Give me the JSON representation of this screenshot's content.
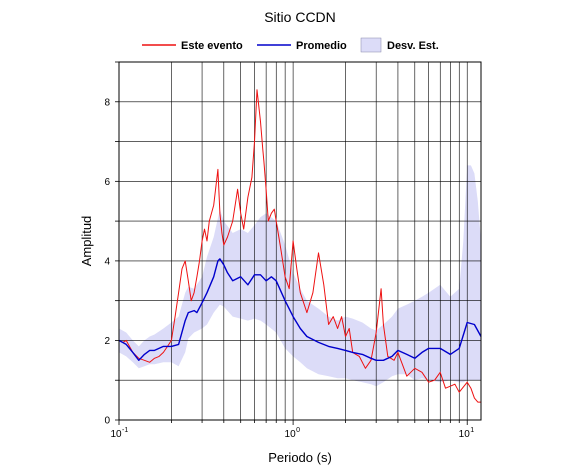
{
  "chart_data": {
    "type": "line",
    "title": "Sitio CCDN",
    "xlabel": "Periodo (s)",
    "ylabel": "Amplitud",
    "xscale": "log",
    "xlim": [
      0.1,
      12
    ],
    "ylim": [
      0,
      9
    ],
    "grid": true,
    "legend_position": "top",
    "x_tick_labels": [
      {
        "value": 0.1,
        "base": "10",
        "exp": "-1"
      },
      {
        "value": 1,
        "base": "10",
        "exp": "0"
      },
      {
        "value": 10,
        "base": "10",
        "exp": "1"
      }
    ],
    "y_ticks": [
      0,
      2,
      4,
      6,
      8
    ],
    "colors": {
      "event": "#ee1111",
      "mean": "#0000cc",
      "band": "#dcdcf8"
    },
    "legend": [
      {
        "label": "Este evento",
        "kind": "line",
        "color": "#ee1111"
      },
      {
        "label": "Promedio",
        "kind": "line",
        "color": "#0000cc"
      },
      {
        "label": "Desv. Est.",
        "kind": "band",
        "color": "#dcdcf8"
      }
    ],
    "series": [
      {
        "name": "Este evento",
        "color": "#ee1111",
        "x": [
          0.1,
          0.105,
          0.11,
          0.12,
          0.13,
          0.14,
          0.15,
          0.16,
          0.17,
          0.18,
          0.19,
          0.2,
          0.21,
          0.22,
          0.23,
          0.24,
          0.25,
          0.26,
          0.27,
          0.28,
          0.29,
          0.3,
          0.31,
          0.32,
          0.33,
          0.35,
          0.37,
          0.38,
          0.39,
          0.4,
          0.42,
          0.45,
          0.48,
          0.5,
          0.52,
          0.55,
          0.58,
          0.6,
          0.62,
          0.65,
          0.67,
          0.68,
          0.7,
          0.72,
          0.75,
          0.78,
          0.8,
          0.85,
          0.9,
          0.95,
          1.0,
          1.05,
          1.1,
          1.2,
          1.3,
          1.4,
          1.5,
          1.6,
          1.7,
          1.8,
          1.9,
          2.0,
          2.1,
          2.2,
          2.4,
          2.6,
          2.8,
          3.0,
          3.2,
          3.3,
          3.5,
          3.8,
          4.0,
          4.5,
          5.0,
          5.5,
          6.0,
          6.5,
          7.0,
          7.5,
          8.0,
          8.5,
          9.0,
          10.0,
          10.5,
          11.0,
          11.5,
          12.0
        ],
        "values": [
          2.0,
          1.95,
          2.0,
          1.7,
          1.55,
          1.5,
          1.45,
          1.55,
          1.6,
          1.7,
          1.85,
          2.0,
          2.6,
          3.2,
          3.8,
          4.0,
          3.5,
          3.0,
          3.2,
          3.6,
          4.0,
          4.5,
          4.8,
          4.5,
          5.0,
          5.4,
          6.3,
          5.2,
          4.7,
          4.4,
          4.6,
          5.0,
          5.8,
          5.2,
          4.8,
          5.6,
          6.1,
          7.0,
          8.3,
          7.5,
          6.8,
          6.5,
          5.8,
          5.0,
          5.2,
          5.3,
          5.0,
          4.3,
          3.6,
          3.3,
          4.5,
          3.8,
          3.2,
          2.7,
          3.2,
          4.2,
          3.4,
          2.4,
          2.6,
          2.3,
          2.6,
          2.1,
          2.3,
          1.7,
          1.6,
          1.3,
          1.5,
          2.2,
          3.3,
          2.4,
          1.6,
          1.5,
          1.7,
          1.1,
          1.3,
          1.2,
          0.95,
          1.0,
          1.2,
          0.8,
          0.85,
          0.9,
          0.7,
          0.95,
          0.8,
          0.55,
          0.45,
          0.45
        ]
      },
      {
        "name": "Promedio",
        "color": "#0000cc",
        "x": [
          0.1,
          0.11,
          0.12,
          0.13,
          0.14,
          0.15,
          0.16,
          0.18,
          0.2,
          0.22,
          0.24,
          0.25,
          0.27,
          0.28,
          0.3,
          0.32,
          0.35,
          0.37,
          0.38,
          0.4,
          0.42,
          0.45,
          0.5,
          0.55,
          0.6,
          0.65,
          0.7,
          0.75,
          0.8,
          0.9,
          1.0,
          1.1,
          1.2,
          1.4,
          1.6,
          1.8,
          2.0,
          2.2,
          2.5,
          2.8,
          3.0,
          3.3,
          3.7,
          4.0,
          4.5,
          5.0,
          5.5,
          6.0,
          7.0,
          8.0,
          9.0,
          10.0,
          11.0,
          12.0
        ],
        "values": [
          2.0,
          1.9,
          1.7,
          1.5,
          1.65,
          1.75,
          1.75,
          1.85,
          1.85,
          1.9,
          2.5,
          2.7,
          2.75,
          2.7,
          2.95,
          3.2,
          3.6,
          4.0,
          4.05,
          3.9,
          3.7,
          3.5,
          3.6,
          3.4,
          3.65,
          3.65,
          3.5,
          3.6,
          3.5,
          3.0,
          2.6,
          2.3,
          2.1,
          1.95,
          1.85,
          1.8,
          1.75,
          1.7,
          1.65,
          1.55,
          1.5,
          1.5,
          1.6,
          1.75,
          1.65,
          1.55,
          1.7,
          1.8,
          1.8,
          1.65,
          1.8,
          2.45,
          2.4,
          2.1
        ]
      }
    ],
    "std_band": {
      "name": "Desv. Est.",
      "x": [
        0.1,
        0.11,
        0.12,
        0.13,
        0.14,
        0.15,
        0.16,
        0.18,
        0.2,
        0.22,
        0.24,
        0.25,
        0.27,
        0.3,
        0.32,
        0.35,
        0.38,
        0.4,
        0.45,
        0.5,
        0.55,
        0.6,
        0.65,
        0.7,
        0.8,
        0.9,
        1.0,
        1.1,
        1.2,
        1.4,
        1.6,
        1.8,
        2.0,
        2.2,
        2.5,
        2.8,
        3.0,
        3.3,
        3.7,
        4.0,
        4.5,
        5.0,
        5.5,
        6.0,
        7.0,
        8.0,
        9.0,
        9.5,
        10.0,
        10.5,
        11.0,
        11.5,
        12.0
      ],
      "upper": [
        2.3,
        2.2,
        2.0,
        1.85,
        2.0,
        2.1,
        2.15,
        2.3,
        2.45,
        2.6,
        3.2,
        3.35,
        3.3,
        3.6,
        4.1,
        4.6,
        5.3,
        5.0,
        4.7,
        4.8,
        4.7,
        4.9,
        5.1,
        5.2,
        5.0,
        4.4,
        3.7,
        3.3,
        3.0,
        2.8,
        2.6,
        2.5,
        2.6,
        2.55,
        2.45,
        2.3,
        2.25,
        2.4,
        2.6,
        2.8,
        2.9,
        3.0,
        3.1,
        3.2,
        3.4,
        3.1,
        3.3,
        4.5,
        6.4,
        6.4,
        6.2,
        5.5,
        4.5
      ],
      "lower": [
        1.7,
        1.6,
        1.45,
        1.3,
        1.35,
        1.4,
        1.4,
        1.45,
        1.45,
        1.35,
        1.7,
        2.05,
        2.2,
        2.3,
        2.4,
        2.7,
        2.9,
        2.85,
        2.6,
        2.55,
        2.5,
        2.55,
        2.5,
        2.4,
        2.2,
        1.8,
        1.6,
        1.45,
        1.3,
        1.15,
        1.1,
        1.05,
        1.05,
        1.0,
        0.95,
        0.9,
        0.85,
        0.95,
        1.1,
        1.15,
        1.15,
        1.0,
        1.05,
        1.0,
        0.95,
        1.0,
        0.95,
        0.95,
        1.0,
        1.0,
        1.0,
        1.0,
        1.0
      ]
    }
  }
}
